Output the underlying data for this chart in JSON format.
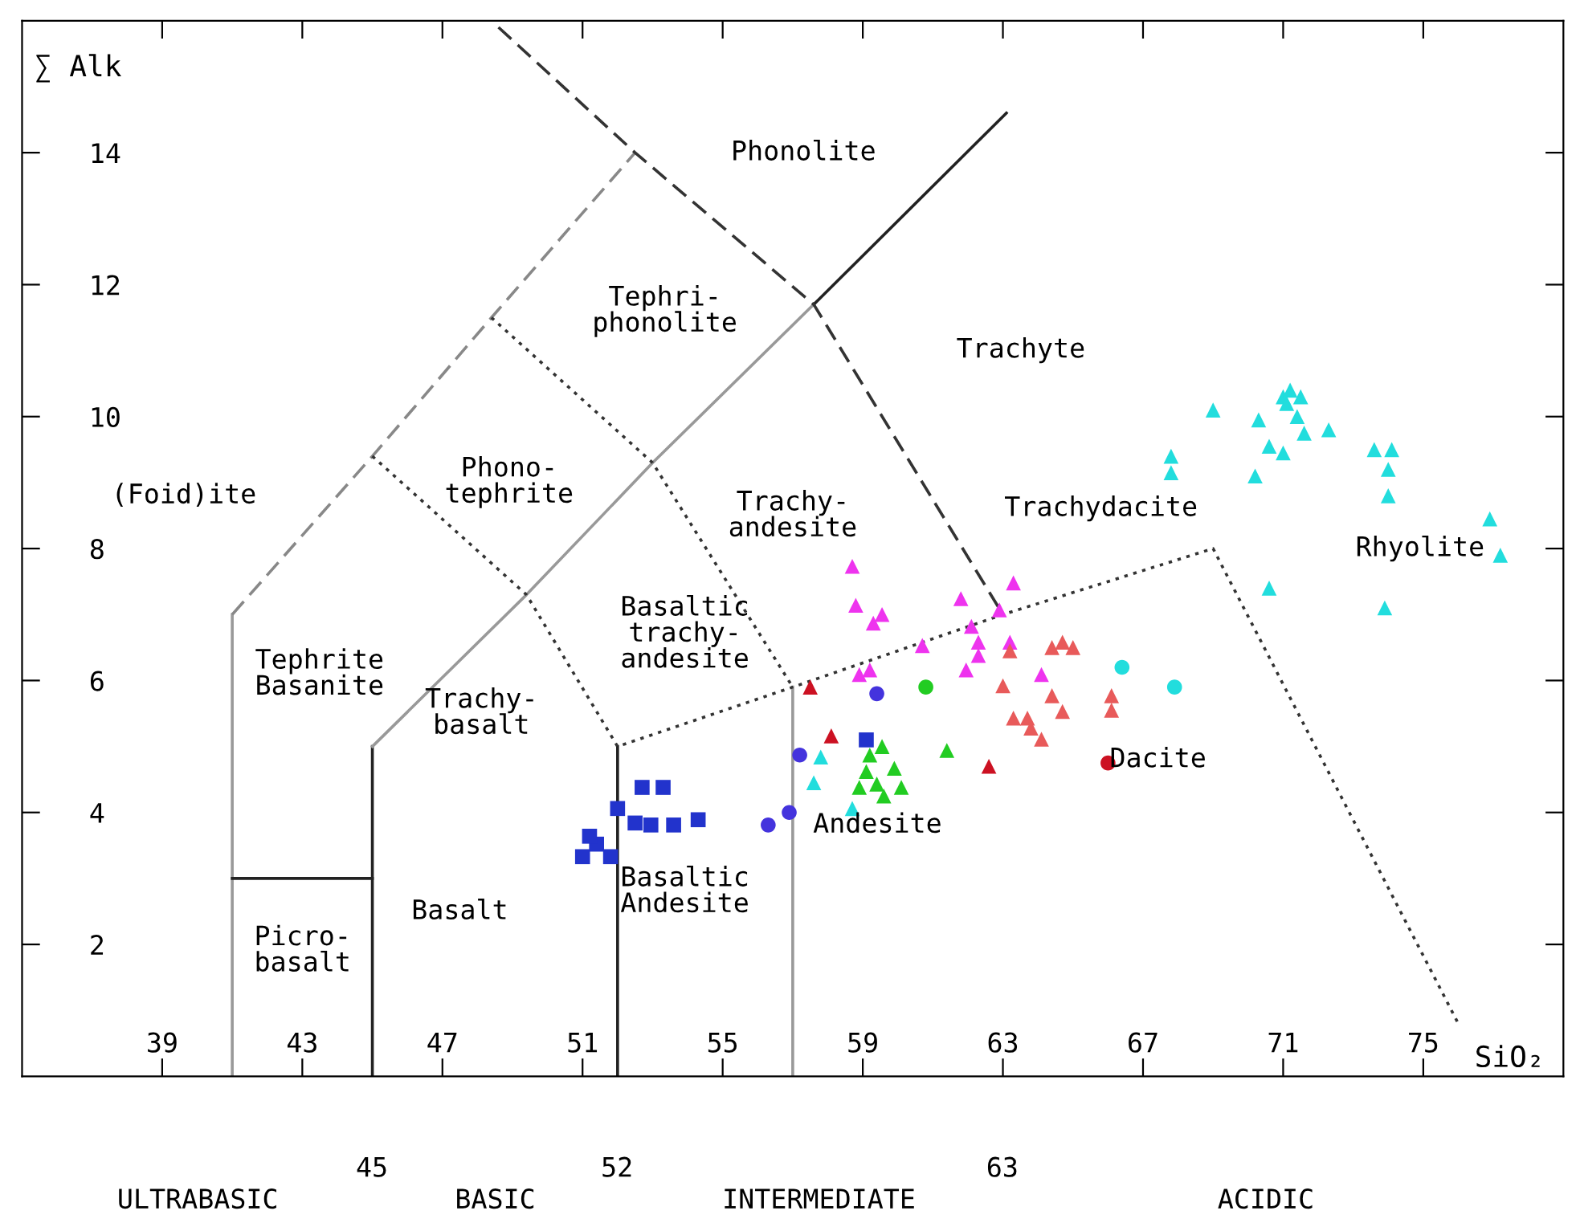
{
  "chart_data": {
    "type": "scatter",
    "xlabel": "SiO₂",
    "ylabel": "∑ Alk",
    "xlim": [
      35,
      79
    ],
    "ylim": [
      0,
      16
    ],
    "xticks": [
      39,
      43,
      47,
      51,
      55,
      59,
      63,
      67,
      71,
      75
    ],
    "yticks": [
      2,
      4,
      6,
      8,
      10,
      12,
      14
    ],
    "grid": false,
    "series": [
      {
        "type": "line",
        "color": "#999999",
        "line_style": "solid",
        "marker": "none",
        "x": [
          41,
          41
        ],
        "values": [
          0,
          7
        ]
      },
      {
        "type": "line",
        "color": "#888888",
        "line_style": "dashed",
        "marker": "none",
        "x": [
          41,
          45,
          48.4,
          52.5
        ],
        "values": [
          7,
          9.4,
          11.5,
          14
        ]
      },
      {
        "type": "line",
        "color": "#222222",
        "line_style": "solid",
        "marker": "none",
        "x": [
          41,
          45
        ],
        "values": [
          3,
          3
        ]
      },
      {
        "type": "line",
        "color": "#222222",
        "line_style": "solid",
        "marker": "none",
        "x": [
          45,
          45
        ],
        "values": [
          0,
          5
        ]
      },
      {
        "type": "line",
        "color": "#999999",
        "line_style": "solid",
        "marker": "none",
        "x": [
          45,
          49.4,
          53,
          57.6
        ],
        "values": [
          5,
          7.3,
          9.3,
          11.7
        ]
      },
      {
        "type": "line",
        "color": "#222222",
        "line_style": "solid",
        "marker": "none",
        "x": [
          57.6,
          63.1
        ],
        "values": [
          11.7,
          14.6
        ]
      },
      {
        "type": "line",
        "color": "#222222",
        "line_style": "solid",
        "marker": "none",
        "x": [
          52,
          52
        ],
        "values": [
          0,
          5
        ]
      },
      {
        "type": "line",
        "color": "#999999",
        "line_style": "solid",
        "marker": "none",
        "x": [
          57,
          57
        ],
        "values": [
          0,
          5.9
        ]
      },
      {
        "type": "line",
        "color": "#333333",
        "line_style": "dotted",
        "marker": "none",
        "x": [
          45,
          49.4,
          52,
          57,
          63,
          69,
          76
        ],
        "values": [
          9.4,
          7.3,
          5,
          5.9,
          7,
          8,
          0.8
        ]
      },
      {
        "type": "line",
        "color": "#333333",
        "line_style": "dotted",
        "marker": "none",
        "x": [
          48.4,
          53,
          57
        ],
        "values": [
          11.5,
          9.3,
          5.9
        ]
      },
      {
        "type": "line",
        "color": "#333333",
        "line_style": "dashed",
        "marker": "none",
        "x": [
          48.6,
          52.5,
          57.6,
          63
        ],
        "values": [
          15.9,
          14,
          11.7,
          7
        ]
      },
      {
        "color": "#22dddd",
        "marker": "triangle",
        "x": [
          69.0,
          70.3,
          71.0,
          71.2,
          71.5,
          71.1,
          71.4,
          71.6,
          72.3,
          70.6,
          71.0,
          70.2,
          67.8,
          67.8,
          73.6,
          74.1,
          74.0,
          74.0,
          76.9,
          77.2,
          70.6,
          73.9
        ],
        "values": [
          10.1,
          9.95,
          10.3,
          10.4,
          10.3,
          10.2,
          10.0,
          9.75,
          9.8,
          9.55,
          9.45,
          9.1,
          9.4,
          9.15,
          9.5,
          9.5,
          9.2,
          8.8,
          8.45,
          7.9,
          7.4,
          7.1
        ]
      },
      {
        "color": "#22dddd",
        "marker": "circle",
        "x": [
          66.4,
          67.9
        ],
        "values": [
          6.2,
          5.9
        ]
      },
      {
        "color": "#22dddd",
        "marker": "triangle",
        "x": [
          57.8,
          57.6,
          58.7
        ],
        "values": [
          4.84,
          4.45,
          4.06
        ]
      },
      {
        "color": "#22cc22",
        "marker": "circle",
        "x": [
          60.8
        ],
        "values": [
          5.9
        ]
      },
      {
        "color": "#22cc22",
        "marker": "triangle",
        "x": [
          59.2,
          59.55,
          59.9,
          59.4,
          58.9,
          60.1,
          59.6,
          59.1,
          61.4
        ],
        "values": [
          4.87,
          5.0,
          4.67,
          4.43,
          4.38,
          4.38,
          4.25,
          4.62,
          4.94
        ]
      },
      {
        "color": "#cc1122",
        "marker": "triangle",
        "x": [
          57.5,
          58.1,
          62.6
        ],
        "values": [
          5.9,
          5.16,
          4.7
        ]
      },
      {
        "color": "#cc1122",
        "marker": "circle",
        "x": [
          66.0
        ],
        "values": [
          4.75
        ]
      },
      {
        "color": "#2233cc",
        "marker": "square",
        "x": [
          52.7,
          53.3,
          52.0,
          52.5,
          52.95,
          53.6,
          54.3,
          51.4,
          51.0,
          51.2,
          51.8,
          59.1
        ],
        "values": [
          4.38,
          4.38,
          4.06,
          3.84,
          3.81,
          3.81,
          3.89,
          3.52,
          3.33,
          3.64,
          3.33,
          5.1
        ]
      },
      {
        "color": "#4433dd",
        "marker": "circle",
        "x": [
          56.3,
          56.9,
          57.2,
          59.4
        ],
        "values": [
          3.81,
          4.0,
          4.87,
          5.8
        ]
      },
      {
        "color": "#ee33ee",
        "marker": "triangle",
        "x": [
          58.7,
          58.8,
          59.55,
          59.3,
          60.7,
          61.8,
          62.1,
          62.3,
          62.3,
          61.95,
          62.9,
          63.2,
          64.1,
          58.9,
          59.2,
          63.3
        ],
        "values": [
          7.73,
          7.14,
          7.0,
          6.87,
          6.53,
          7.24,
          6.82,
          6.58,
          6.38,
          6.16,
          7.07,
          6.58,
          6.09,
          6.09,
          6.16,
          7.48
        ]
      },
      {
        "color": "#e85a5a",
        "marker": "triangle",
        "x": [
          64.4,
          64.7,
          63.0,
          63.3,
          63.8,
          64.4,
          64.7,
          63.7,
          64.1,
          66.1,
          66.1,
          65.0,
          63.2
        ],
        "values": [
          6.5,
          6.58,
          5.92,
          5.43,
          5.28,
          5.77,
          5.53,
          5.43,
          5.11,
          5.77,
          5.55,
          6.5,
          6.45
        ]
      }
    ],
    "annotations": [
      "Phonolite",
      "Tephri-\nphonolite",
      "Trachyte",
      "Phono-\ntephrite",
      "(Foid)ite",
      "Trachy-\nandesite",
      "Trachydacite",
      "Rhyolite",
      "Basaltic\ntrachy-\nandesite",
      "Tephrite\nBasanite",
      "Trachy-\nbasalt",
      "Dacite",
      "Andesite",
      "Basalt",
      "Basaltic\nAndesite",
      "Picro-\nbasalt",
      "45",
      "52",
      "63",
      "ULTRABASIC",
      "BASIC",
      "INTERMEDIATE",
      "ACIDIC"
    ]
  }
}
